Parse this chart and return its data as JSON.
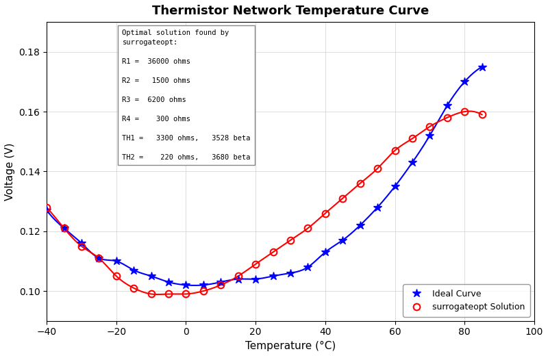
{
  "title": "Thermistor Network Temperature Curve",
  "xlabel": "Temperature (°C)",
  "ylabel": "Voltage (V)",
  "xlim": [
    -40,
    100
  ],
  "ylim": [
    0.09,
    0.19
  ],
  "ideal_color": "#0000ff",
  "surrogate_color": "#ff0000",
  "ideal_label": "Ideal Curve",
  "surrogate_label": "surrogateopt Solution",
  "annotation": "Optimal solution found by\nsurrogateopt:\n\nR1 =  36000 ohms\n\nR2 =   1500 ohms\n\nR3 =  6200 ohms\n\nR4 =    300 ohms\n\nTH1 =   3300 ohms,   3528 beta\n\nTH2 =    220 ohms,   3680 beta",
  "ideal_T": [
    -40,
    -35,
    -30,
    -25,
    -20,
    -15,
    -10,
    -5,
    0,
    5,
    10,
    15,
    20,
    25,
    30,
    35,
    40,
    45,
    50,
    55,
    60,
    65,
    70,
    75,
    80,
    85
  ],
  "ideal_V": [
    0.127,
    0.121,
    0.116,
    0.111,
    0.11,
    0.107,
    0.105,
    0.103,
    0.102,
    0.102,
    0.103,
    0.104,
    0.104,
    0.105,
    0.106,
    0.108,
    0.113,
    0.117,
    0.122,
    0.128,
    0.135,
    0.143,
    0.152,
    0.162,
    0.17,
    0.175
  ],
  "surrogate_T": [
    -40,
    -35,
    -30,
    -25,
    -20,
    -15,
    -10,
    -5,
    0,
    5,
    10,
    15,
    20,
    25,
    30,
    35,
    40,
    45,
    50,
    55,
    60,
    65,
    70,
    75,
    80,
    85
  ],
  "surrogate_V": [
    0.128,
    0.121,
    0.115,
    0.111,
    0.105,
    0.101,
    0.099,
    0.099,
    0.099,
    0.1,
    0.102,
    0.105,
    0.109,
    0.113,
    0.117,
    0.121,
    0.126,
    0.131,
    0.136,
    0.141,
    0.147,
    0.151,
    0.155,
    0.158,
    0.16,
    0.159
  ]
}
